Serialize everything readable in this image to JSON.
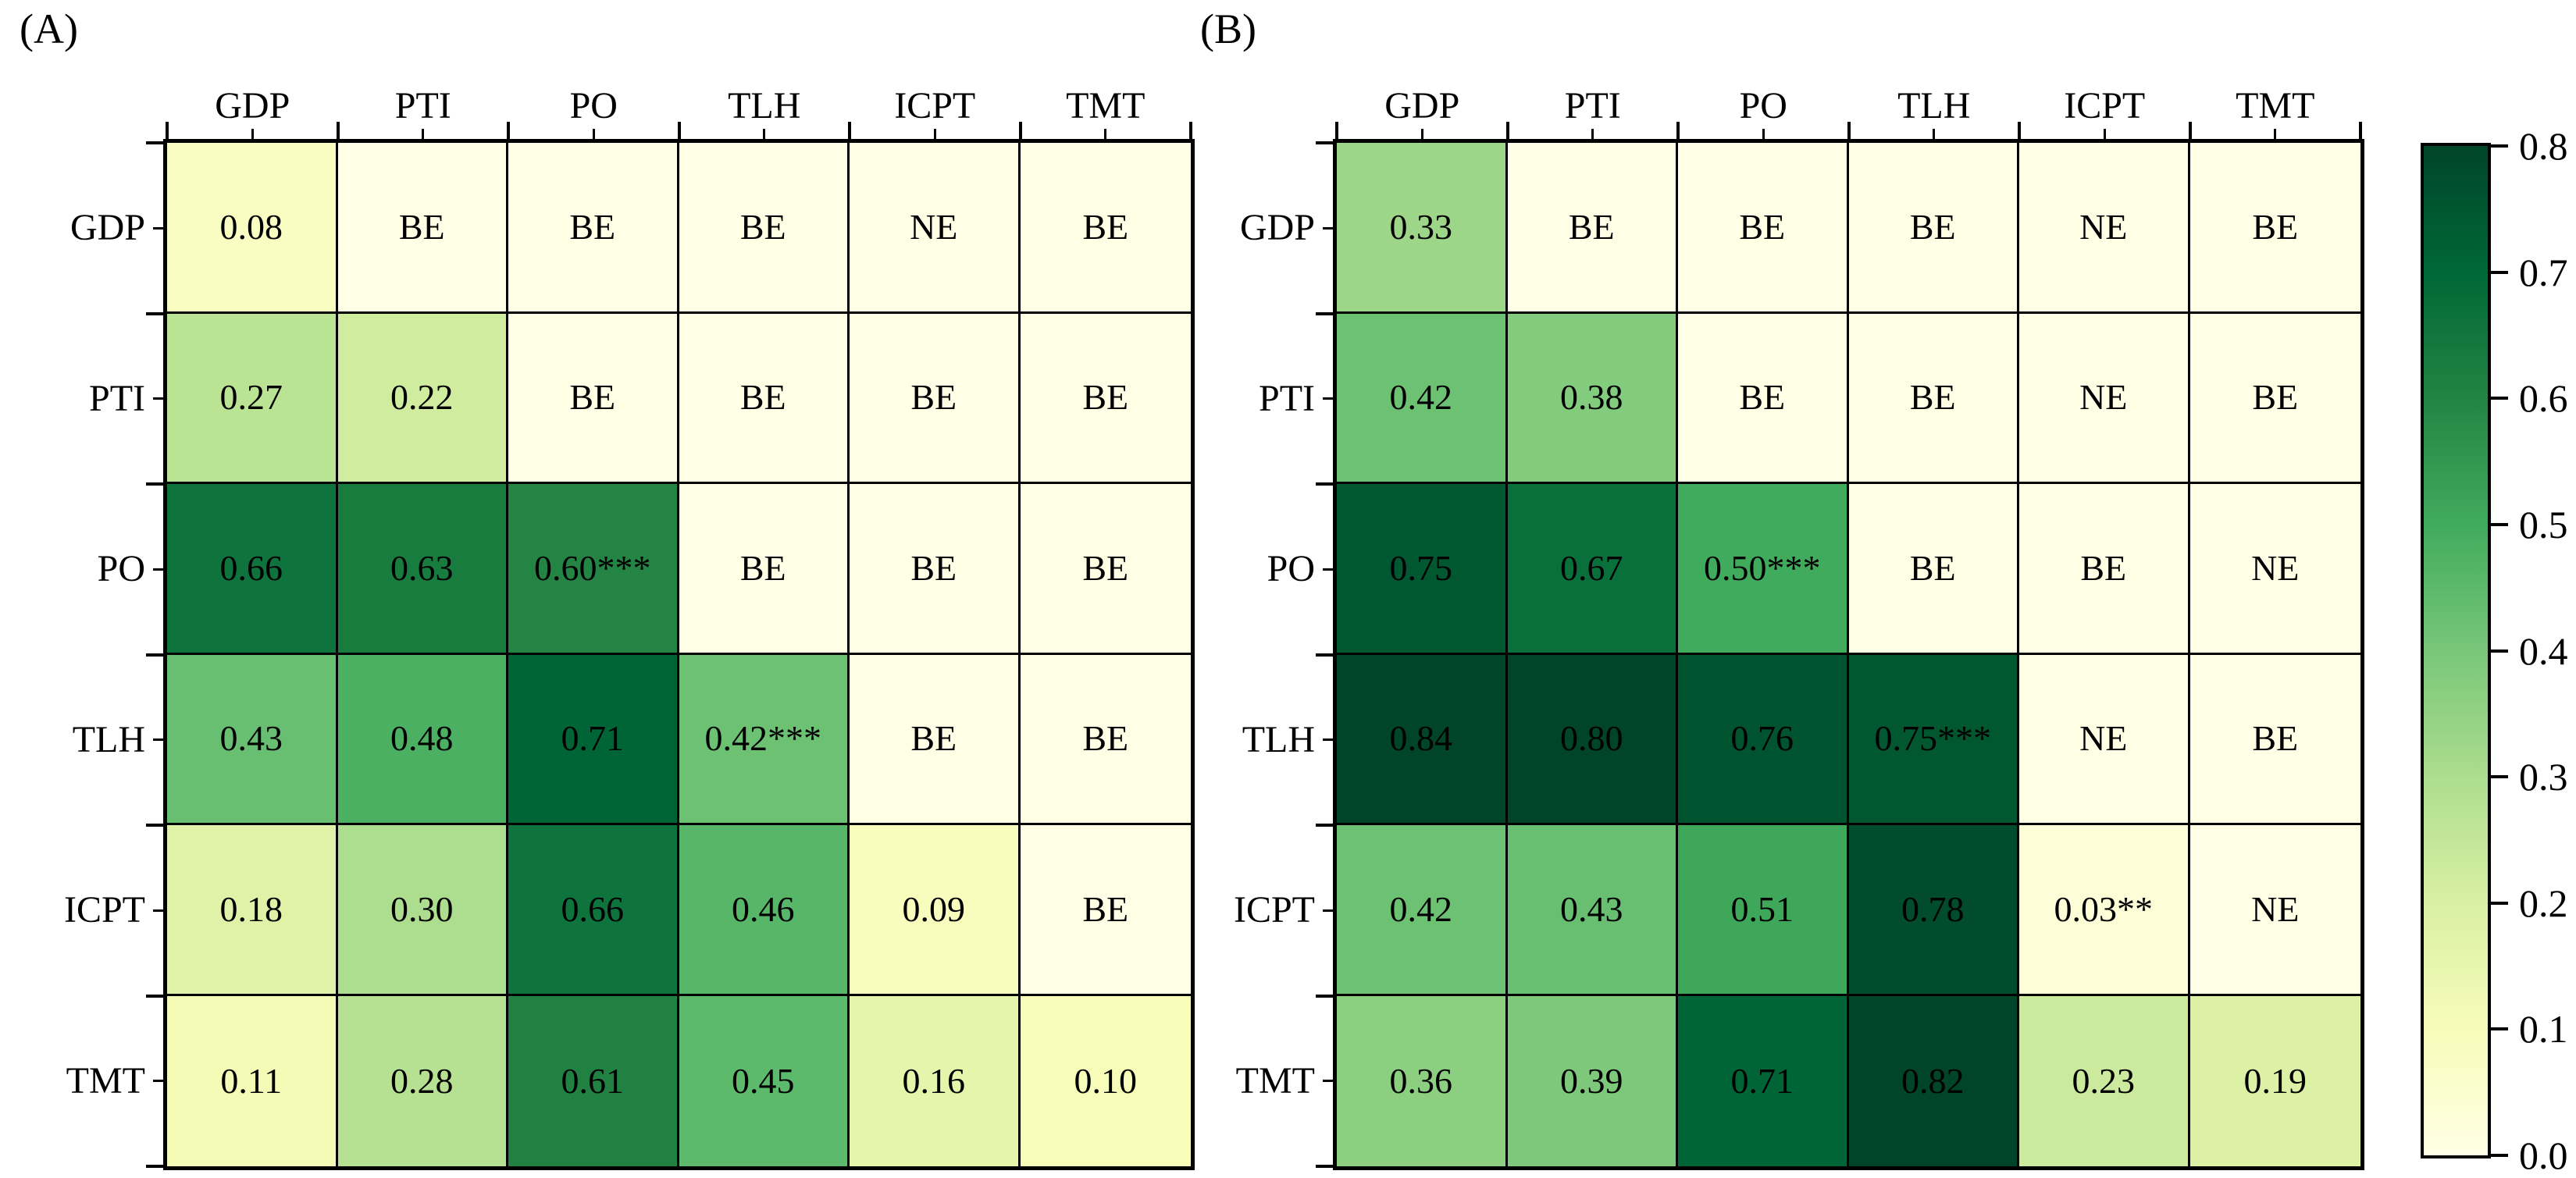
{
  "figure": {
    "kind": "correlation heatmap figure, two panels with shared colorbar",
    "panel_a_label": "(A)",
    "panel_b_label": "(B)"
  },
  "chart_data": [
    {
      "type": "heatmap",
      "title": "(A)",
      "x_categories": [
        "GDP",
        "PTI",
        "PO",
        "TLH",
        "ICPT",
        "TMT"
      ],
      "y_categories": [
        "GDP",
        "PTI",
        "PO",
        "TLH",
        "ICPT",
        "TMT"
      ],
      "values": [
        [
          0.08,
          null,
          null,
          null,
          null,
          null
        ],
        [
          0.27,
          0.22,
          null,
          null,
          null,
          null
        ],
        [
          0.66,
          0.63,
          0.6,
          null,
          null,
          null
        ],
        [
          0.43,
          0.48,
          0.71,
          0.42,
          null,
          null
        ],
        [
          0.18,
          0.3,
          0.66,
          0.46,
          0.09,
          null
        ],
        [
          0.11,
          0.28,
          0.61,
          0.45,
          0.16,
          0.1
        ]
      ],
      "annotations": [
        [
          "0.08",
          "BE",
          "BE",
          "BE",
          "NE",
          "BE"
        ],
        [
          "0.27",
          "0.22",
          "BE",
          "BE",
          "BE",
          "BE"
        ],
        [
          "0.66",
          "0.63",
          "0.60***",
          "BE",
          "BE",
          "BE"
        ],
        [
          "0.43",
          "0.48",
          "0.71",
          "0.42***",
          "BE",
          "BE"
        ],
        [
          "0.18",
          "0.30",
          "0.66",
          "0.46",
          "0.09",
          "BE"
        ],
        [
          "0.11",
          "0.28",
          "0.61",
          "0.45",
          "0.16",
          "0.10"
        ]
      ],
      "colormap": "YlGn",
      "vmin": 0.0,
      "vmax": 0.8,
      "grid": true,
      "annotation_color": "#000000"
    },
    {
      "type": "heatmap",
      "title": "(B)",
      "x_categories": [
        "GDP",
        "PTI",
        "PO",
        "TLH",
        "ICPT",
        "TMT"
      ],
      "y_categories": [
        "GDP",
        "PTI",
        "PO",
        "TLH",
        "ICPT",
        "TMT"
      ],
      "values": [
        [
          0.33,
          null,
          null,
          null,
          null,
          null
        ],
        [
          0.42,
          0.38,
          null,
          null,
          null,
          null
        ],
        [
          0.75,
          0.67,
          0.5,
          null,
          null,
          null
        ],
        [
          0.84,
          0.8,
          0.76,
          0.75,
          null,
          null
        ],
        [
          0.42,
          0.43,
          0.51,
          0.78,
          0.03,
          null
        ],
        [
          0.36,
          0.39,
          0.71,
          0.82,
          0.23,
          0.19
        ]
      ],
      "annotations": [
        [
          "0.33",
          "BE",
          "BE",
          "BE",
          "NE",
          "BE"
        ],
        [
          "0.42",
          "0.38",
          "BE",
          "BE",
          "NE",
          "BE"
        ],
        [
          "0.75",
          "0.67",
          "0.50***",
          "BE",
          "BE",
          "NE"
        ],
        [
          "0.84",
          "0.80",
          "0.76",
          "0.75***",
          "NE",
          "BE"
        ],
        [
          "0.42",
          "0.43",
          "0.51",
          "0.78",
          "0.03**",
          "NE"
        ],
        [
          "0.36",
          "0.39",
          "0.71",
          "0.82",
          "0.23",
          "0.19"
        ]
      ],
      "colormap": "YlGn",
      "vmin": 0.0,
      "vmax": 0.8,
      "grid": true,
      "annotation_color": "#000000"
    }
  ],
  "colorbar": {
    "tick_labels": [
      "0.8",
      "0.7",
      "0.6",
      "0.5",
      "0.4",
      "0.3",
      "0.2",
      "0.1",
      "0.0"
    ],
    "vmin": 0.0,
    "vmax": 0.8,
    "orientation": "vertical",
    "position": "right"
  }
}
